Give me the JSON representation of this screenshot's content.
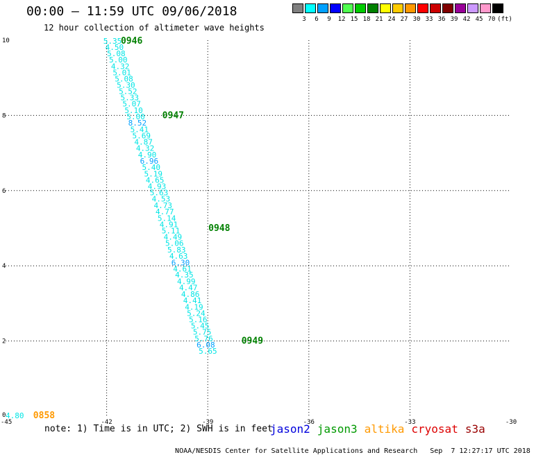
{
  "title": "00:00 – 11:59 UTC 09/06/2018",
  "subtitle": "12 hour collection of altimeter wave heights",
  "color_scale": {
    "unit": "(ft)",
    "entries": [
      {
        "label": "3",
        "color": "#808080"
      },
      {
        "label": "6",
        "color": "#00ffff"
      },
      {
        "label": "9",
        "color": "#00a0ff"
      },
      {
        "label": "12",
        "color": "#0000ff"
      },
      {
        "label": "15",
        "color": "#50ff50"
      },
      {
        "label": "18",
        "color": "#00cc00"
      },
      {
        "label": "21",
        "color": "#008000"
      },
      {
        "label": "24",
        "color": "#ffff00"
      },
      {
        "label": "27",
        "color": "#ffcc00"
      },
      {
        "label": "30",
        "color": "#ff9900"
      },
      {
        "label": "33",
        "color": "#ff0000"
      },
      {
        "label": "36",
        "color": "#cc0000"
      },
      {
        "label": "39",
        "color": "#800000"
      },
      {
        "label": "42",
        "color": "#990099"
      },
      {
        "label": "45",
        "color": "#cc99ff"
      },
      {
        "label": "70",
        "color": "#ff99cc"
      },
      {
        "label": "",
        "color": "#000000"
      }
    ]
  },
  "chart_data": {
    "type": "scatter",
    "title": "00:00 – 11:59 UTC 09/06/2018",
    "subtitle": "12 hour collection of altimeter wave heights",
    "xlim": [
      -45,
      -30
    ],
    "ylim": [
      0,
      10
    ],
    "x_ticks": [
      "-45",
      "-42",
      "-39",
      "-36",
      "-33",
      "-30"
    ],
    "x_tick_values": [
      -45,
      -42,
      -39,
      -36,
      -33,
      -30
    ],
    "y_ticks": [
      "0",
      "2",
      "4",
      "6",
      "8",
      "10"
    ],
    "y_tick_values": [
      0,
      2,
      4,
      6,
      8,
      10
    ],
    "grid": true,
    "points": [
      {
        "x": -42.1,
        "y": 9.98,
        "label": "5.35",
        "color": "#00e5e5"
      },
      {
        "x": -42.04,
        "y": 9.82,
        "label": "4.50",
        "color": "#00e5e5"
      },
      {
        "x": -41.99,
        "y": 9.65,
        "label": "5.08",
        "color": "#00e5e5"
      },
      {
        "x": -41.93,
        "y": 9.48,
        "label": "5.00",
        "color": "#00e5e5"
      },
      {
        "x": -41.87,
        "y": 9.31,
        "label": "4.32",
        "color": "#00e5e5"
      },
      {
        "x": -41.82,
        "y": 9.14,
        "label": "5.01",
        "color": "#00e5e5"
      },
      {
        "x": -41.76,
        "y": 8.98,
        "label": "5.08",
        "color": "#00e5e5"
      },
      {
        "x": -41.7,
        "y": 8.81,
        "label": "5.30",
        "color": "#00e5e5"
      },
      {
        "x": -41.64,
        "y": 8.64,
        "label": "5.52",
        "color": "#00e5e5"
      },
      {
        "x": -41.59,
        "y": 8.48,
        "label": "5.33",
        "color": "#00e5e5"
      },
      {
        "x": -41.53,
        "y": 8.31,
        "label": "5.07",
        "color": "#00e5e5"
      },
      {
        "x": -41.47,
        "y": 8.14,
        "label": "5.10",
        "color": "#00e5e5"
      },
      {
        "x": -41.41,
        "y": 7.97,
        "label": "5.00",
        "color": "#00e5e5"
      },
      {
        "x": -41.36,
        "y": 7.8,
        "label": "8.52",
        "color": "#00a0ff"
      },
      {
        "x": -41.3,
        "y": 7.63,
        "label": "5.41",
        "color": "#00e5e5"
      },
      {
        "x": -41.24,
        "y": 7.46,
        "label": "5.69",
        "color": "#00e5e5"
      },
      {
        "x": -41.18,
        "y": 7.3,
        "label": "4.87",
        "color": "#00e5e5"
      },
      {
        "x": -41.13,
        "y": 7.13,
        "label": "4.32",
        "color": "#00e5e5"
      },
      {
        "x": -41.07,
        "y": 6.96,
        "label": "4.90",
        "color": "#00e5e5"
      },
      {
        "x": -41.01,
        "y": 6.79,
        "label": "6.96",
        "color": "#00a0ff"
      },
      {
        "x": -40.95,
        "y": 6.62,
        "label": "5.40",
        "color": "#00e5e5"
      },
      {
        "x": -40.89,
        "y": 6.45,
        "label": "5.19",
        "color": "#00e5e5"
      },
      {
        "x": -40.84,
        "y": 6.28,
        "label": "4.65",
        "color": "#00e5e5"
      },
      {
        "x": -40.78,
        "y": 6.12,
        "label": "4.93",
        "color": "#00e5e5"
      },
      {
        "x": -40.72,
        "y": 5.95,
        "label": "5.63",
        "color": "#00e5e5"
      },
      {
        "x": -40.66,
        "y": 5.78,
        "label": "4.53",
        "color": "#00e5e5"
      },
      {
        "x": -40.6,
        "y": 5.61,
        "label": "4.73",
        "color": "#00e5e5"
      },
      {
        "x": -40.55,
        "y": 5.44,
        "label": "4.77",
        "color": "#00e5e5"
      },
      {
        "x": -40.49,
        "y": 5.27,
        "label": "5.14",
        "color": "#00e5e5"
      },
      {
        "x": -40.43,
        "y": 5.1,
        "label": "4.91",
        "color": "#00e5e5"
      },
      {
        "x": -40.37,
        "y": 4.94,
        "label": "5.11",
        "color": "#00e5e5"
      },
      {
        "x": -40.31,
        "y": 4.77,
        "label": "4.49",
        "color": "#00e5e5"
      },
      {
        "x": -40.26,
        "y": 4.6,
        "label": "5.06",
        "color": "#00e5e5"
      },
      {
        "x": -40.2,
        "y": 4.43,
        "label": "5.83",
        "color": "#00e5e5"
      },
      {
        "x": -40.14,
        "y": 4.26,
        "label": "4.63",
        "color": "#00e5e5"
      },
      {
        "x": -40.08,
        "y": 4.09,
        "label": "6.30",
        "color": "#00a0ff"
      },
      {
        "x": -40.03,
        "y": 3.92,
        "label": "4.61",
        "color": "#00e5e5"
      },
      {
        "x": -39.97,
        "y": 3.76,
        "label": "4.35",
        "color": "#00e5e5"
      },
      {
        "x": -39.91,
        "y": 3.59,
        "label": "4.99",
        "color": "#00e5e5"
      },
      {
        "x": -39.85,
        "y": 3.42,
        "label": "4.47",
        "color": "#00e5e5"
      },
      {
        "x": -39.79,
        "y": 3.25,
        "label": "4.86",
        "color": "#00e5e5"
      },
      {
        "x": -39.73,
        "y": 3.08,
        "label": "4.41",
        "color": "#00e5e5"
      },
      {
        "x": -39.68,
        "y": 2.91,
        "label": "4.19",
        "color": "#00e5e5"
      },
      {
        "x": -39.62,
        "y": 2.74,
        "label": "5.24",
        "color": "#00e5e5"
      },
      {
        "x": -39.56,
        "y": 2.57,
        "label": "5.16",
        "color": "#00e5e5"
      },
      {
        "x": -39.5,
        "y": 2.41,
        "label": "5.45",
        "color": "#00e5e5"
      },
      {
        "x": -39.44,
        "y": 2.24,
        "label": "5.75",
        "color": "#00e5e5"
      },
      {
        "x": -39.39,
        "y": 2.07,
        "label": "5.76",
        "color": "#00e5e5"
      },
      {
        "x": -39.33,
        "y": 1.9,
        "label": "6.08",
        "color": "#00a0ff"
      },
      {
        "x": -39.27,
        "y": 1.73,
        "label": "5.65",
        "color": "#00e5e5"
      },
      {
        "x": -45.0,
        "y": 0.02,
        "label": "4.80",
        "color": "#00e5e5"
      }
    ],
    "time_labels": [
      {
        "x": -41.58,
        "y": 9.98,
        "label": "0946",
        "color": "#008000"
      },
      {
        "x": -40.35,
        "y": 8.0,
        "label": "0947",
        "color": "#008000"
      },
      {
        "x": -38.98,
        "y": 5.0,
        "label": "0948",
        "color": "#008000"
      },
      {
        "x": -38.0,
        "y": 2.0,
        "label": "0949",
        "color": "#008000"
      },
      {
        "x": -44.18,
        "y": 0.02,
        "label": "0858",
        "color": "#ff9900"
      }
    ]
  },
  "note": "note: 1) Time is in UTC; 2) SWH is in feet",
  "satellites": [
    {
      "name": "jason2",
      "color": "#0000dd"
    },
    {
      "name": "jason3",
      "color": "#009900"
    },
    {
      "name": "altika",
      "color": "#ff9900"
    },
    {
      "name": "cryosat",
      "color": "#dd0000"
    },
    {
      "name": "s3a",
      "color": "#990000"
    }
  ],
  "footer": {
    "credit": "NOAA/NESDIS Center for Satellite Applications and Research",
    "timestamp": "Sep  7 12:27:17 UTC 2018"
  }
}
